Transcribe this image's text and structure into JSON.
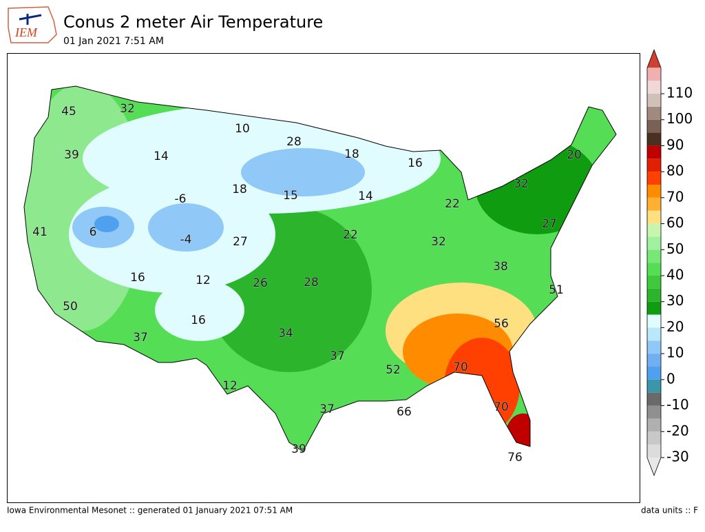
{
  "header": {
    "logo": "IEM",
    "title": "Conus 2 meter Air Temperature",
    "subtitle": "01 Jan 2021 7:51 AM"
  },
  "footer": {
    "left": "Iowa Environmental Mesonet :: generated 01 January 2021 07:51 AM",
    "right": "data units :: F"
  },
  "map_labels": [
    45,
    32,
    10,
    28,
    18,
    16,
    20,
    39,
    14,
    -6,
    18,
    15,
    14,
    22,
    32,
    41,
    6,
    -4,
    27,
    22,
    32,
    27,
    16,
    12,
    26,
    28,
    38,
    51,
    50,
    37,
    16,
    34,
    56,
    37,
    52,
    70,
    12,
    37,
    66,
    70,
    39,
    76
  ],
  "colorbar": {
    "ticks": [
      -30,
      -20,
      -10,
      0,
      10,
      20,
      30,
      40,
      50,
      60,
      70,
      80,
      90,
      100,
      110
    ],
    "start": -30,
    "step": 5,
    "colors": [
      "#dcdcdc",
      "#c8c8c8",
      "#b0b0b0",
      "#909090",
      "#6a6a6a",
      "#3a96a8",
      "#50a0f0",
      "#70b0f0",
      "#90c8f8",
      "#b8e8fa",
      "#e0fcff",
      "#109c10",
      "#2cb52c",
      "#3ec83e",
      "#55dd55",
      "#77e877",
      "#a0f0a0",
      "#c8f5b0",
      "#ffe080",
      "#ffb030",
      "#ff8c00",
      "#ff4000",
      "#e02000",
      "#c00000",
      "#4a3020",
      "#7a6055",
      "#a08a80",
      "#d0c0b8",
      "#f0d8d8",
      "#f0b0b0"
    ],
    "under": "#e8e8e8",
    "over": "#d04030"
  }
}
